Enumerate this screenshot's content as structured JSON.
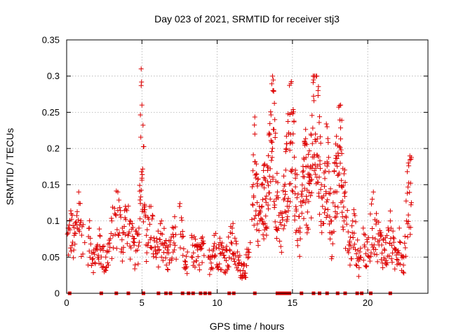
{
  "chart_data": {
    "type": "scatter",
    "title": "Day 023 of 2021, SRMTID for receiver stj3",
    "xlabel": "GPS time / hours",
    "ylabel": "SRMTID / TECUs",
    "xlim": [
      0,
      24
    ],
    "ylim": [
      0,
      0.35
    ],
    "x_ticks": [
      "0",
      "5",
      "10",
      "15",
      "20"
    ],
    "y_ticks": [
      "0",
      "0.05",
      "0.1",
      "0.15",
      "0.2",
      "0.25",
      "0.3",
      "0.35"
    ],
    "grid": true,
    "marker": "+",
    "color": "#dd0000",
    "series": [
      {
        "name": "SRMTID",
        "x": [
          0.1,
          0.3,
          0.5,
          0.8,
          1.2,
          1.5,
          1.8,
          2.2,
          2.6,
          3.0,
          3.4,
          3.7,
          3.9,
          4.2,
          4.5,
          4.8,
          4.95,
          5.0,
          5.3,
          5.6,
          5.9,
          6.3,
          6.7,
          7.1,
          7.5,
          7.9,
          8.3,
          8.7,
          9.0,
          9.4,
          9.8,
          10.2,
          10.6,
          11.0,
          11.4,
          11.8,
          12.2,
          12.5,
          12.8,
          13.1,
          13.4,
          13.7,
          14.0,
          14.3,
          14.6,
          14.9,
          15.2,
          15.5,
          15.8,
          16.1,
          16.4,
          16.7,
          17.0,
          17.3,
          17.6,
          17.9,
          18.2,
          18.5,
          18.8,
          19.1,
          19.4,
          19.7,
          20.0,
          20.3,
          20.6,
          20.9,
          21.2,
          21.5,
          21.8,
          22.1,
          22.4,
          22.7
        ],
        "y": [
          0.09,
          0.11,
          0.08,
          0.14,
          0.07,
          0.09,
          0.06,
          0.08,
          0.05,
          0.1,
          0.14,
          0.09,
          0.12,
          0.1,
          0.07,
          0.09,
          0.31,
          0.26,
          0.08,
          0.12,
          0.06,
          0.1,
          0.06,
          0.09,
          0.12,
          0.04,
          0.08,
          0.06,
          0.07,
          0.05,
          0.08,
          0.07,
          0.06,
          0.09,
          0.05,
          0.04,
          0.07,
          0.22,
          0.12,
          0.16,
          0.19,
          0.28,
          0.14,
          0.11,
          0.2,
          0.29,
          0.17,
          0.09,
          0.21,
          0.16,
          0.3,
          0.28,
          0.12,
          0.23,
          0.1,
          0.19,
          0.26,
          0.14,
          0.07,
          0.11,
          0.05,
          0.09,
          0.06,
          0.13,
          0.1,
          0.08,
          0.07,
          0.1,
          0.06,
          0.09,
          0.05,
          0.18
        ]
      }
    ],
    "missing_x": [
      0.2,
      2.3,
      3.3,
      4.1,
      5.1,
      6.1,
      6.6,
      6.9,
      7.7,
      8.1,
      8.4,
      8.9,
      9.2,
      9.5,
      10.8,
      11.1,
      12.5,
      14.0,
      14.2,
      14.4,
      14.6,
      14.8,
      15.6,
      16.4,
      16.8,
      17.3,
      18.0,
      18.5,
      19.3,
      19.6,
      20.2,
      21.5
    ]
  }
}
